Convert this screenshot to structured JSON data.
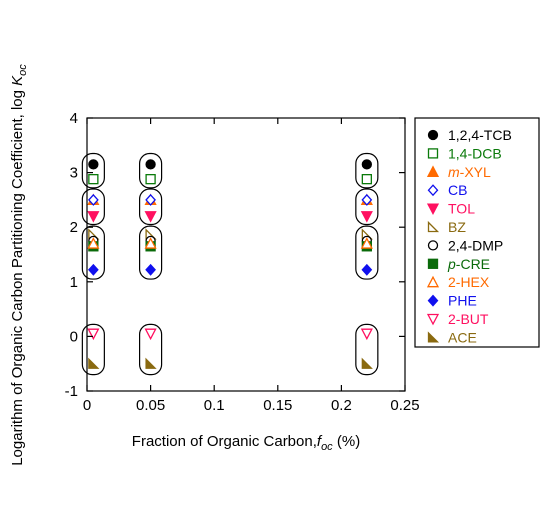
{
  "chart_data": {
    "type": "scatter",
    "xlabel": {
      "main": "Fraction of Organic Carbon,",
      "italic": "f",
      "sub": "oc",
      "unit": " (%)"
    },
    "ylabel": {
      "main": "Logarithm of Organic Carbon Partitioning Coefficient, log ",
      "italic": "K",
      "sub": "oc"
    },
    "xlim": [
      0,
      0.25
    ],
    "ylim": [
      -1,
      4
    ],
    "xticks": [
      0,
      0.05,
      0.1,
      0.15,
      0.2,
      0.25
    ],
    "xtick_labels": [
      "0",
      "0.05",
      "0.1",
      "0.15",
      "0.2",
      "0.25"
    ],
    "yticks": [
      -1,
      0,
      1,
      2,
      3,
      4
    ],
    "ytick_labels": [
      "-1",
      "0",
      "1",
      "2",
      "3",
      "4"
    ],
    "grid": false,
    "legend_position": "right",
    "x": [
      0.005,
      0.05,
      0.22
    ],
    "series": [
      {
        "name": "1,2,4-TCB",
        "name_parts": [
          {
            "t": "1,2,4-TCB"
          }
        ],
        "marker": "circle-filled",
        "color": "#000000",
        "text_color": "#000000",
        "values": [
          3.15,
          3.15,
          3.15
        ]
      },
      {
        "name": "1,4-DCB",
        "name_parts": [
          {
            "t": "1,4-DCB"
          }
        ],
        "marker": "square-open",
        "color": "#0a7a0a",
        "text_color": "#0a7a0a",
        "values": [
          2.88,
          2.88,
          2.88
        ]
      },
      {
        "name": "m-XYL",
        "name_parts": [
          {
            "t": "m",
            "i": true
          },
          {
            "t": "-XYL"
          }
        ],
        "marker": "triangle-up-filled",
        "color": "#ff6a00",
        "text_color": "#ff6a00",
        "values": [
          2.5,
          2.5,
          2.5
        ]
      },
      {
        "name": "CB",
        "name_parts": [
          {
            "t": "CB"
          }
        ],
        "marker": "diamond-open",
        "color": "#1010ee",
        "text_color": "#1010ee",
        "values": [
          2.5,
          2.5,
          2.5
        ]
      },
      {
        "name": "TOL",
        "name_parts": [
          {
            "t": "TOL"
          }
        ],
        "marker": "triangle-down-filled",
        "color": "#ff1060",
        "text_color": "#ff1060",
        "values": [
          2.2,
          2.2,
          2.2
        ]
      },
      {
        "name": "BZ",
        "name_parts": [
          {
            "t": "BZ"
          }
        ],
        "marker": "half-triangle-open",
        "color": "#8a6a10",
        "text_color": "#8a6a10",
        "values": [
          1.87,
          1.87,
          1.87
        ]
      },
      {
        "name": "2,4-DMP",
        "name_parts": [
          {
            "t": "2,4-DMP"
          }
        ],
        "marker": "circle-open",
        "color": "#000000",
        "text_color": "#000000",
        "values": [
          1.75,
          1.75,
          1.75
        ]
      },
      {
        "name": "p-CRE",
        "name_parts": [
          {
            "t": "p",
            "i": true
          },
          {
            "t": "-CRE"
          }
        ],
        "marker": "square-filled",
        "color": "#0a6a0a",
        "text_color": "#0a6a0a",
        "values": [
          1.65,
          1.65,
          1.65
        ]
      },
      {
        "name": "2-HEX",
        "name_parts": [
          {
            "t": "2-HEX"
          }
        ],
        "marker": "triangle-up-open",
        "color": "#ff6a00",
        "text_color": "#ff6a00",
        "values": [
          1.7,
          1.7,
          1.7
        ]
      },
      {
        "name": "PHE",
        "name_parts": [
          {
            "t": "PHE"
          }
        ],
        "marker": "diamond-filled",
        "color": "#1010ee",
        "text_color": "#1010ee",
        "values": [
          1.22,
          1.22,
          1.22
        ]
      },
      {
        "name": "2-BUT",
        "name_parts": [
          {
            "t": "2-BUT"
          }
        ],
        "marker": "triangle-down-open",
        "color": "#ff1060",
        "text_color": "#ff1060",
        "values": [
          0.05,
          0.05,
          0.05
        ]
      },
      {
        "name": "ACE",
        "name_parts": [
          {
            "t": "ACE"
          }
        ],
        "marker": "half-triangle-filled",
        "color": "#8a6a10",
        "text_color": "#8a6a10",
        "values": [
          -0.5,
          -0.5,
          -0.5
        ]
      }
    ],
    "annotations": {
      "type": "rounded-grouping-boxes",
      "groups": [
        {
          "x": 0.005,
          "y_ranges": [
            [
              2.72,
              3.35
            ],
            [
              2.05,
              2.7
            ],
            [
              1.05,
              2.02
            ],
            [
              -0.7,
              0.22
            ]
          ]
        },
        {
          "x": 0.05,
          "y_ranges": [
            [
              2.72,
              3.35
            ],
            [
              2.05,
              2.7
            ],
            [
              1.05,
              2.02
            ],
            [
              -0.7,
              0.22
            ]
          ]
        },
        {
          "x": 0.22,
          "y_ranges": [
            [
              2.72,
              3.35
            ],
            [
              2.05,
              2.7
            ],
            [
              1.05,
              2.02
            ],
            [
              -0.7,
              0.22
            ]
          ]
        }
      ]
    }
  }
}
